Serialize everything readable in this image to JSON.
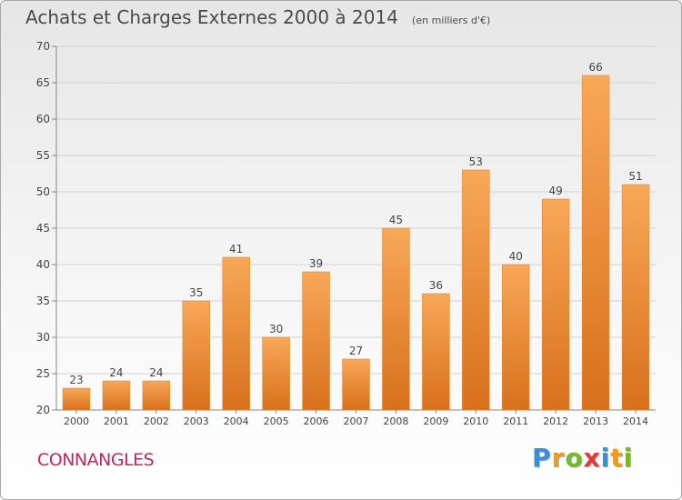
{
  "title": "Achats et Charges Externes 2000 à 2014",
  "unit": "(en milliers d'€)",
  "location": "CONNANGLES",
  "brand": {
    "letters": [
      "P",
      "r",
      "o",
      "x",
      "i",
      "t",
      "i"
    ],
    "colors": [
      "#3a8fd6",
      "#f29a1c",
      "#7ab828",
      "#e23b3b",
      "#3a8fd6",
      "#f29a1c",
      "#7ab828"
    ]
  },
  "colors": {
    "bar_top": "#f8a858",
    "bar_bottom": "#d8701c",
    "bar_edge": "#e8882e"
  },
  "chart_data": {
    "type": "bar",
    "categories": [
      "2000",
      "2001",
      "2002",
      "2003",
      "2004",
      "2005",
      "2006",
      "2007",
      "2008",
      "2009",
      "2010",
      "2011",
      "2012",
      "2013",
      "2014"
    ],
    "values": [
      23,
      24,
      24,
      35,
      41,
      30,
      39,
      27,
      45,
      36,
      53,
      40,
      49,
      66,
      51
    ],
    "ylim": [
      20,
      70
    ],
    "yticks": [
      20,
      25,
      30,
      35,
      40,
      45,
      50,
      55,
      60,
      65,
      70
    ],
    "grid": true
  }
}
